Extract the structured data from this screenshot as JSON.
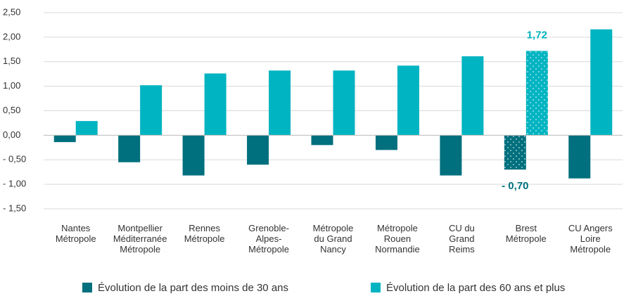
{
  "chart_data": {
    "type": "bar",
    "categories": [
      "Nantes\nMétropole",
      "Montpellier\nMéditerranée\nMétropole",
      "Rennes\nMétropole",
      "Grenoble-\nAlpes-\nMétropole",
      "Métropole\ndu Grand\nNancy",
      "Métropole\nRouen\nNormandie",
      "CU du\nGrand\nReims",
      "Brest\nMétropole",
      "CU Angers\nLoire\nMétropole"
    ],
    "series": [
      {
        "name": "Évolution de la part des moins de 30 ans",
        "color": "#00707e",
        "values": [
          -0.14,
          -0.55,
          -0.82,
          -0.6,
          -0.2,
          -0.3,
          -0.82,
          -0.7,
          -0.88
        ],
        "value_labels": [
          null,
          null,
          null,
          null,
          null,
          null,
          null,
          "- 0,70",
          null
        ]
      },
      {
        "name": "Évolution de la part des 60 ans et plus",
        "color": "#00b4c1",
        "values": [
          0.29,
          1.02,
          1.26,
          1.32,
          1.32,
          1.42,
          1.61,
          1.72,
          2.16
        ],
        "value_labels": [
          null,
          null,
          null,
          null,
          null,
          null,
          null,
          "1,72",
          null
        ]
      }
    ],
    "ylim": [
      -1.5,
      2.5
    ],
    "yticks": [
      {
        "value": -1.5,
        "label": "- 1,50"
      },
      {
        "value": -1.0,
        "label": "- 1,00"
      },
      {
        "value": -0.5,
        "label": "- 0,50"
      },
      {
        "value": 0,
        "label": "0,00"
      },
      {
        "value": 0.5,
        "label": "0,50"
      },
      {
        "value": 1.0,
        "label": "1,00"
      },
      {
        "value": 1.5,
        "label": "1,50"
      },
      {
        "value": 2.0,
        "label": "2,00"
      },
      {
        "value": 2.5,
        "label": "2,50"
      }
    ],
    "grid": true,
    "legend": "bottom"
  }
}
